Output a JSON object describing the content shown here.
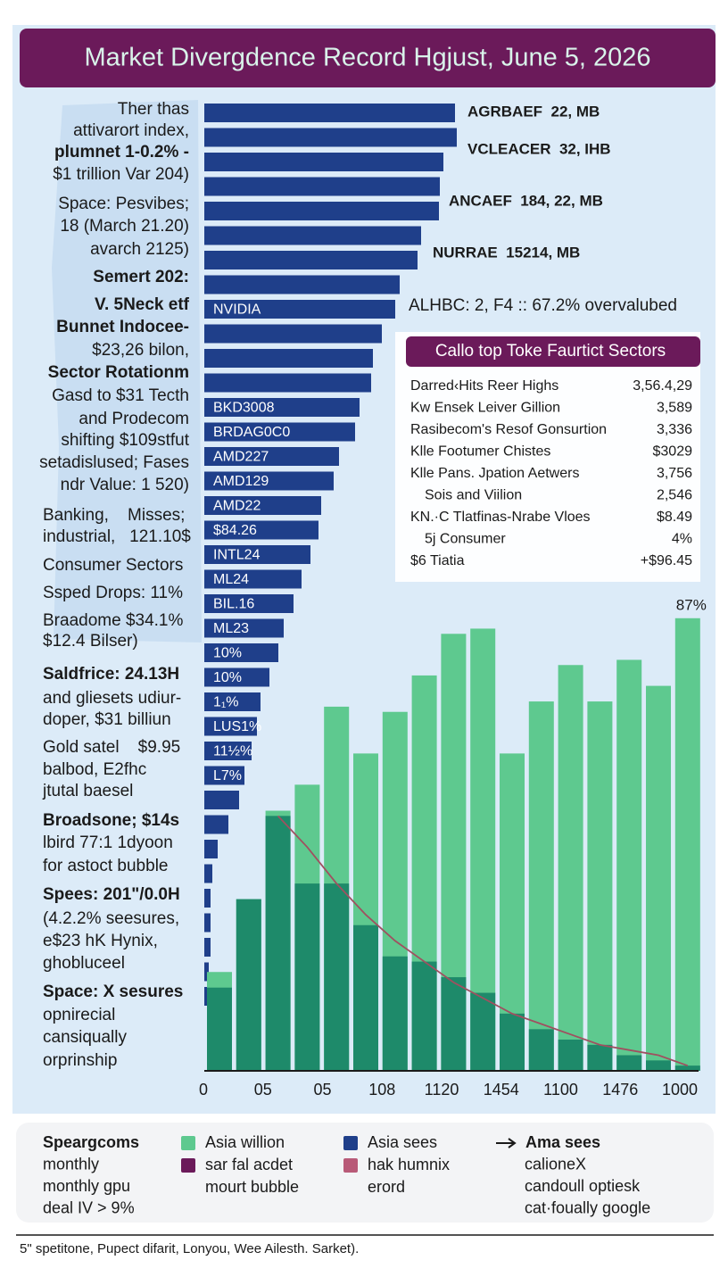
{
  "title": "Market Divergdence Record Hgjust, June 5, 2026",
  "left_text": [
    {
      "text": "Ther thas"
    },
    {
      "text": "attivarort index,"
    },
    {
      "text": "plumnet 1-0.2% -",
      "bold": true
    },
    {
      "text": "$1 trillion Var 204)"
    },
    {
      "text": "Space: Pesvibes;"
    },
    {
      "text": "18 (March 21.20)"
    },
    {
      "text": "avarch 2125)"
    },
    {
      "text": "Semert 202:",
      "bold": true
    },
    {
      "text": "V. 5Neck etf",
      "bold": true
    },
    {
      "text": "Bunnet Indocee-",
      "bold": true
    },
    {
      "text": "$23,26 bilon,"
    },
    {
      "text": "Sector Rotationm",
      "bold": true
    },
    {
      "text": "Gasd to $31 Tecth"
    },
    {
      "text": "and Prodecom"
    },
    {
      "text": "shifting $109stfut"
    },
    {
      "text": "setadislused; Fases"
    },
    {
      "text": "ndr Value: 1 520)"
    },
    {
      "text": "Banking,    Misses;"
    },
    {
      "text": "industrial,   121.10$"
    },
    {
      "text": "Consumer Sectors"
    },
    {
      "text": "Ssped Drops: 11%"
    },
    {
      "text": "Braadome $34.1%"
    },
    {
      "text": "$12.4 Bilser)"
    },
    {
      "text": "Saldfrice: 24.13H",
      "bold": true
    },
    {
      "text": "and gliesets udiur-"
    },
    {
      "text": "doper, $31 billiun"
    },
    {
      "text": "Gold satel    $9.95"
    },
    {
      "text": "balbod, E2fhc"
    },
    {
      "text": "jtutal baesel"
    },
    {
      "text": "Broadsone; $14s",
      "bold": true
    },
    {
      "text": "lbird 77:1 1dyoon"
    },
    {
      "text": "for astoct bubble"
    },
    {
      "text": "Spees: 201\"/0.0H",
      "bold": true
    },
    {
      "text": "(4.2.2% seesures,"
    },
    {
      "text": "e$23 hK Hynix,"
    },
    {
      "text": "ghobluceel"
    },
    {
      "text": "Space: X sesures",
      "bold": true
    },
    {
      "text": "opnirecial"
    },
    {
      "text": "cansiqually"
    },
    {
      "text": "orprinship"
    }
  ],
  "annotations": [
    "AGRBAEF  22, MB",
    "VCLEACER  32, IHB",
    "ANCAEF  184, 22, MB",
    "NURRAE  15214, MB",
    "ALHBC: 2, F4 :: 67.2% overvalubed"
  ],
  "chart_data": [
    {
      "type": "bar",
      "orientation": "horizontal",
      "color": "#1f3f8a",
      "categories": [
        null,
        null,
        null,
        null,
        null,
        null,
        null,
        null,
        "NVIDIA",
        null,
        null,
        null,
        "BKD3008",
        "BRDAG0C0",
        "AMD227",
        "AMD129",
        "AMD22",
        "$84.26",
        "INTL24",
        "ML24",
        "BIL.16",
        "ML23",
        "10%",
        "10%",
        "1₁%",
        "LUS1%",
        "11½%",
        "L7%",
        null,
        null,
        null,
        null,
        null,
        null,
        null,
        null,
        null
      ],
      "values": [
        281,
        283,
        268,
        264,
        263,
        243,
        239,
        219,
        214,
        199,
        189,
        187,
        174,
        169,
        151,
        145,
        131,
        128,
        119,
        109,
        100,
        89,
        83,
        73,
        63,
        59,
        53,
        45,
        39,
        27,
        15,
        9,
        7,
        7,
        7,
        5,
        3
      ]
    },
    {
      "type": "bar",
      "orientation": "vertical",
      "series": [
        {
          "type": "bar",
          "color": "#5ec98f",
          "values": [
            19,
            33,
            50,
            55,
            70,
            61,
            69,
            76,
            84,
            85,
            61,
            71,
            78,
            71,
            79,
            74,
            87
          ],
          "value_labels": [
            null,
            null,
            null,
            null,
            null,
            null,
            null,
            null,
            null,
            null,
            null,
            null,
            null,
            null,
            null,
            null,
            "87%"
          ]
        },
        {
          "type": "bar",
          "color": "#1e8a6a",
          "values": [
            16,
            33,
            49,
            36,
            36,
            28,
            22,
            21,
            18,
            15,
            11,
            8,
            6,
            5,
            3,
            2,
            1
          ]
        },
        {
          "type": "line",
          "color": "#a05060",
          "values": [
            null,
            null,
            49,
            43,
            36,
            30,
            25,
            21,
            17,
            14,
            11,
            9,
            7,
            5,
            4,
            3,
            1
          ]
        }
      ],
      "x_labels": [
        "0",
        "05",
        "05",
        "108",
        "1120",
        "1454",
        "1100",
        "1476",
        "1000"
      ]
    }
  ],
  "sectors": {
    "title": "Callo top Toke Faurtict Sectors",
    "rows": [
      [
        "Darred‹Hits Reer Highs",
        "3,56.4,29"
      ],
      [
        "Kw Ensek Leiver Gillion",
        "3,589"
      ],
      [
        "Rasibecom's Resof Gonsurtion",
        "3,336"
      ],
      [
        "Klle Footumer Chistes",
        "$3029"
      ],
      [
        "Klle Pans. Jpation Aetwers",
        "3,756"
      ],
      [
        "Sois and Viilion",
        "2,546"
      ],
      [
        "KN.·C Tlatfinas-Nrabe Vloes",
        "$8.49"
      ],
      [
        "5j Consumer",
        "4%"
      ],
      [
        "$6 Tiatia",
        "+$96.45"
      ]
    ]
  },
  "legend": {
    "note": [
      "Speargcoms",
      "monthly",
      "monthly gpu",
      "deal IV > 9%"
    ],
    "entries": [
      {
        "color": "#5ec98f",
        "lines": [
          "Asia willion"
        ]
      },
      {
        "color": "#6b1a5a",
        "lines": [
          "sar fal acdet",
          "mourt bubble"
        ]
      },
      {
        "color": "#1f3f8a",
        "lines": [
          "Asia sees"
        ]
      },
      {
        "color": "#b85a78",
        "lines": [
          "hak humnix",
          "erord"
        ]
      }
    ],
    "arrow_note": [
      "Ama sees",
      "calioneX",
      "candoull optiesk",
      "cat·foually google"
    ]
  },
  "footer": "5\" spetitone, Pupect difarit, Lonyou, Wee Ailesth. Sarket)."
}
